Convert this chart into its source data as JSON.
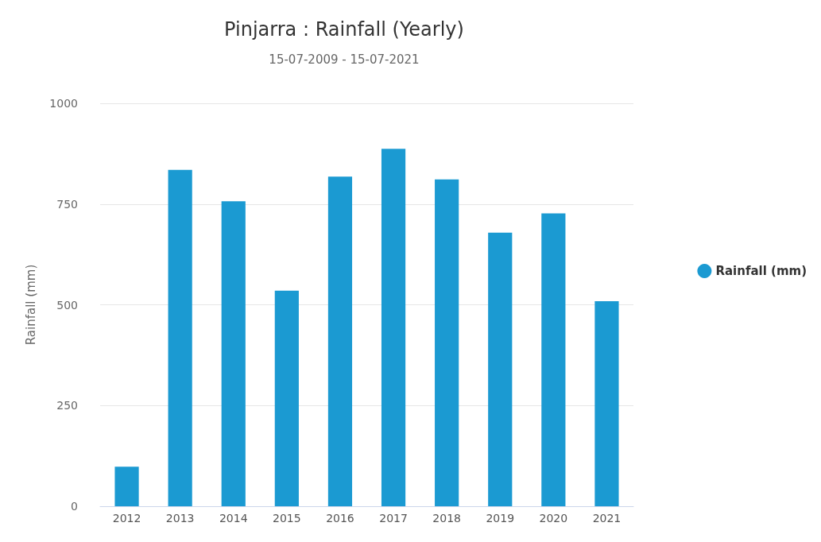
{
  "chart_data": {
    "type": "bar",
    "title": "Pinjarra : Rainfall (Yearly)",
    "subtitle": "15-07-2009 - 15-07-2021",
    "ylabel": "Rainfall (mm)",
    "categories": [
      "2012",
      "2013",
      "2014",
      "2015",
      "2016",
      "2017",
      "2018",
      "2019",
      "2020",
      "2021"
    ],
    "series": [
      {
        "name": "Rainfall (mm)",
        "color": "#1b9ad2",
        "values": [
          98,
          835,
          757,
          535,
          818,
          887,
          811,
          679,
          727,
          509
        ]
      }
    ],
    "ylim": [
      0,
      1000
    ],
    "yticks": [
      0,
      250,
      500,
      750,
      1000
    ],
    "grid": "y",
    "legend": "right"
  }
}
